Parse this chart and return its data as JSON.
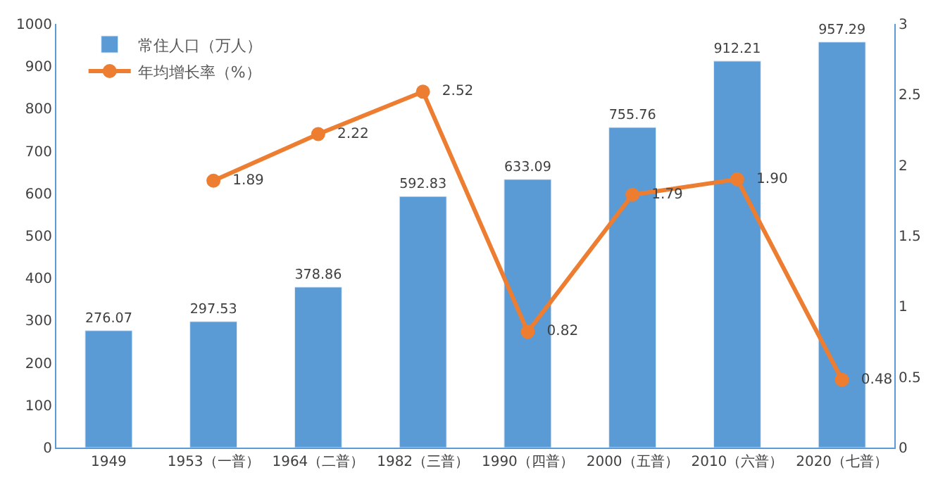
{
  "chart_data": {
    "type": "bar",
    "categories": [
      "1949",
      "1953（一普）",
      "1964（二普）",
      "1982（三普）",
      "1990（四普）",
      "2000（五普）",
      "2010（六普）",
      "2020（七普）"
    ],
    "series": [
      {
        "name": "常住人口（万人）",
        "color": "#5b9bd5",
        "values": [
          276.07,
          297.53,
          378.86,
          592.83,
          633.09,
          755.76,
          912.21,
          957.29
        ],
        "value_labels": [
          "276.07",
          "297.53",
          "378.86",
          "592.83",
          "633.09",
          "755.76",
          "912.21",
          "957.29"
        ]
      },
      {
        "name": "年均增长率（%）",
        "type": "line",
        "axis": "y2",
        "color": "#ed7d31",
        "values": [
          null,
          1.89,
          2.22,
          2.52,
          0.82,
          1.79,
          1.9,
          0.48
        ],
        "value_labels": [
          null,
          "1.89",
          "2.22",
          "2.52",
          "0.82",
          "1.79",
          "1.90",
          "0.48"
        ]
      }
    ],
    "ylim": [
      0,
      1000
    ],
    "yticks": [
      0,
      100,
      200,
      300,
      400,
      500,
      600,
      700,
      800,
      900,
      1000
    ],
    "y2lim": [
      0,
      3
    ],
    "y2ticks": [
      0,
      {
        "value": 0.5,
        "label": "0.5"
      },
      1,
      {
        "value": 1.5,
        "label": "1.5"
      },
      2,
      {
        "value": 2.5,
        "label": "2.5"
      },
      3
    ],
    "legend": "top left",
    "marker": "circle",
    "line_style": "solid"
  }
}
